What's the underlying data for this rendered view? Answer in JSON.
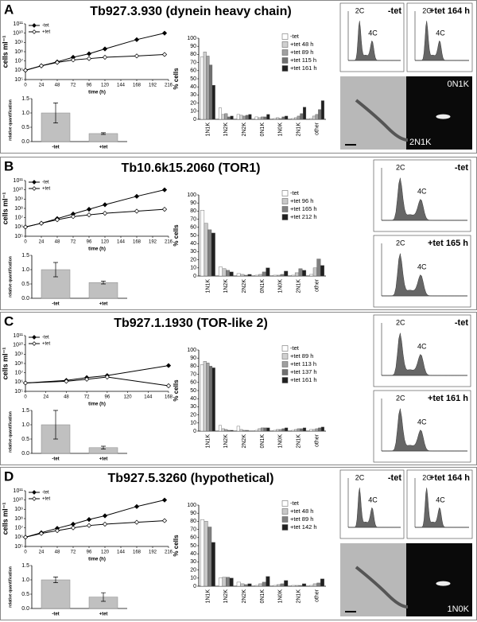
{
  "panels": [
    {
      "letter": "A",
      "title": "Tb927.3.930 (dynein heavy chain)",
      "growth": {
        "type": "line",
        "log": true,
        "xlabel": "time (h)",
        "ylabel": "cells ml⁻¹",
        "xlim": [
          0,
          216
        ],
        "xticks": [
          0,
          24,
          48,
          72,
          96,
          120,
          144,
          168,
          192,
          216
        ],
        "ylim": [
          100000.0,
          100000000000.0
        ],
        "yticks": [
          {
            "value": 100000.0,
            "label": "10⁵"
          },
          {
            "value": 1000000.0,
            "label": "10⁶"
          },
          {
            "value": 10000000.0,
            "label": "10⁷"
          },
          {
            "value": 100000000.0,
            "label": "10⁸"
          },
          {
            "value": 1000000000.0,
            "label": "10⁹"
          },
          {
            "value": 10000000000.0,
            "label": "10¹⁰"
          },
          {
            "value": 100000000000.0,
            "label": "10¹¹"
          }
        ],
        "series": [
          {
            "name": "-tet",
            "color": "#000000",
            "fill": "#000000",
            "x": [
              0,
              24,
              48,
              72,
              96,
              120,
              168,
              210
            ],
            "values": [
              1000000.0,
              3000000.0,
              8000000.0,
              25000000.0,
              60000000.0,
              200000000.0,
              2000000000.0,
              10000000000.0
            ]
          },
          {
            "name": "+tet",
            "color": "#000000",
            "fill": "#ffffff",
            "x": [
              0,
              24,
              48,
              72,
              96,
              120,
              168,
              210
            ],
            "values": [
              1000000.0,
              3000000.0,
              7000000.0,
              13000000.0,
              18000000.0,
              25000000.0,
              35000000.0,
              50000000.0
            ]
          }
        ]
      },
      "qpcr": {
        "type": "bar",
        "ylabel": "relative quantification",
        "categories": [
          "-tet",
          "+tet"
        ],
        "values": [
          1.0,
          0.28
        ],
        "errors": [
          0.35,
          0.03
        ],
        "color": "#c0c0c0",
        "ylim": [
          0,
          1.5
        ],
        "yticks": [
          {
            "value": 0,
            "label": "0.0"
          },
          {
            "value": 0.5,
            "label": "0.5"
          },
          {
            "value": 1,
            "label": "1.0"
          },
          {
            "value": 1.5,
            "label": "1.5"
          }
        ]
      },
      "distribution": {
        "type": "bar",
        "ylabel": "% cells",
        "categories": [
          "1N1K",
          "1N2K",
          "2N2K",
          "0N1K",
          "1N0K",
          "2N1K",
          "other"
        ],
        "ylim": [
          0,
          100
        ],
        "yticks": [
          0,
          10,
          20,
          30,
          40,
          50,
          60,
          70,
          80,
          90,
          100
        ],
        "series": [
          {
            "name": "-tet",
            "color": "#ffffff",
            "values": [
              77,
              14,
              6,
              3,
              1,
              1,
              1
            ]
          },
          {
            "name": "+tet 48 h",
            "color": "#d0d0d0",
            "values": [
              83,
              6,
              5,
              2,
              2,
              2,
              4
            ]
          },
          {
            "name": "+tet 89 h",
            "color": "#a0a0a0",
            "values": [
              78,
              7,
              4,
              3,
              1,
              4,
              6
            ]
          },
          {
            "name": "+tet 115 h",
            "color": "#707070",
            "values": [
              67,
              3,
              5,
              3,
              3,
              7,
              12
            ]
          },
          {
            "name": "+tet 161 h",
            "color": "#202020",
            "values": [
              42,
              4,
              6,
              6,
              4,
              15,
              23
            ]
          }
        ]
      },
      "flow": [
        {
          "label": "-tet",
          "peaks": [
            "2C",
            "4C"
          ]
        },
        {
          "label": "+tet 164 h",
          "peaks": [
            "2C",
            "4C"
          ]
        }
      ],
      "micrograph_labels": [
        "0N1K",
        "2N1K"
      ]
    },
    {
      "letter": "B",
      "title": "Tb10.6k15.2060 (TOR1)",
      "growth": {
        "type": "line",
        "log": true,
        "xlabel": "time (h)",
        "ylabel": "cells ml⁻¹",
        "xlim": [
          0,
          216
        ],
        "xticks": [
          0,
          24,
          48,
          72,
          96,
          120,
          144,
          168,
          192,
          216
        ],
        "ylim": [
          100000.0,
          100000000000.0
        ],
        "yticks": [
          {
            "value": 100000.0,
            "label": "10⁵"
          },
          {
            "value": 1000000.0,
            "label": "10⁶"
          },
          {
            "value": 10000000.0,
            "label": "10⁷"
          },
          {
            "value": 100000000.0,
            "label": "10⁸"
          },
          {
            "value": 1000000000.0,
            "label": "10⁹"
          },
          {
            "value": 10000000000.0,
            "label": "10¹⁰"
          },
          {
            "value": 100000000000.0,
            "label": "10¹¹"
          }
        ],
        "series": [
          {
            "name": "-tet",
            "color": "#000000",
            "fill": "#000000",
            "x": [
              0,
              24,
              48,
              72,
              96,
              120,
              168,
              210
            ],
            "values": [
              1000000.0,
              2500000.0,
              8000000.0,
              25000000.0,
              80000000.0,
              250000000.0,
              2000000000.0,
              10000000000.0
            ]
          },
          {
            "name": "+tet",
            "color": "#000000",
            "fill": "#ffffff",
            "x": [
              0,
              24,
              48,
              72,
              96,
              120,
              168,
              210
            ],
            "values": [
              1000000.0,
              2500000.0,
              6000000.0,
              13000000.0,
              20000000.0,
              30000000.0,
              50000000.0,
              80000000.0
            ]
          }
        ]
      },
      "qpcr": {
        "type": "bar",
        "ylabel": "relative quantification",
        "categories": [
          "-tet",
          "+tet"
        ],
        "values": [
          1.0,
          0.55
        ],
        "errors": [
          0.25,
          0.05
        ],
        "color": "#c0c0c0",
        "ylim": [
          0,
          1.5
        ],
        "yticks": [
          {
            "value": 0,
            "label": "0.0"
          },
          {
            "value": 0.5,
            "label": "0.5"
          },
          {
            "value": 1,
            "label": "1.0"
          },
          {
            "value": 1.5,
            "label": "1.5"
          }
        ]
      },
      "distribution": {
        "type": "bar",
        "ylabel": "% cells",
        "categories": [
          "1N1K",
          "1N2K",
          "2N2K",
          "0N1K",
          "1N0K",
          "2N1K",
          "other"
        ],
        "ylim": [
          0,
          100
        ],
        "yticks": [
          0,
          10,
          20,
          30,
          40,
          50,
          60,
          70,
          80,
          90,
          100
        ],
        "series": [
          {
            "name": "-tet",
            "color": "#ffffff",
            "values": [
              81,
              11,
              3,
              1,
              1,
              1,
              2
            ]
          },
          {
            "name": "+tet 96 h",
            "color": "#c8c8c8",
            "values": [
              65,
              9,
              2,
              2,
              1,
              4,
              10
            ]
          },
          {
            "name": "+tet 165 h",
            "color": "#808080",
            "values": [
              57,
              7,
              1,
              5,
              2,
              9,
              21
            ]
          },
          {
            "name": "+tet 212 h",
            "color": "#202020",
            "values": [
              53,
              5,
              2,
              10,
              6,
              7,
              13
            ]
          }
        ]
      },
      "flow": [
        {
          "label": "-tet",
          "peaks": [
            "2C",
            "4C"
          ]
        },
        {
          "label": "+tet 165 h",
          "peaks": [
            "2C",
            "4C"
          ]
        }
      ],
      "micrograph_labels": []
    },
    {
      "letter": "C",
      "title": "Tb927.1.1930 (TOR-like 2)",
      "growth": {
        "type": "line",
        "log": true,
        "xlabel": "time (h)",
        "ylabel": "cells ml⁻¹",
        "xlim": [
          0,
          168
        ],
        "xticks": [
          0,
          24,
          48,
          72,
          96,
          120,
          144,
          168
        ],
        "ylim": [
          100000.0,
          100000000000.0
        ],
        "yticks": [
          {
            "value": 100000.0,
            "label": "10⁵"
          },
          {
            "value": 1000000.0,
            "label": "10⁶"
          },
          {
            "value": 10000000.0,
            "label": "10⁷"
          },
          {
            "value": 100000000.0,
            "label": "10⁸"
          },
          {
            "value": 1000000000.0,
            "label": "10⁹"
          },
          {
            "value": 10000000000.0,
            "label": "10¹⁰"
          },
          {
            "value": 100000000000.0,
            "label": "10¹¹"
          }
        ],
        "series": [
          {
            "name": "-tet",
            "color": "#000000",
            "fill": "#000000",
            "x": [
              0,
              48,
              72,
              96,
              168
            ],
            "values": [
              800000.0,
              1500000.0,
              3000000.0,
              5000000.0,
              60000000.0
            ]
          },
          {
            "name": "+tet",
            "color": "#000000",
            "fill": "#ffffff",
            "x": [
              0,
              48,
              72,
              96,
              168
            ],
            "values": [
              800000.0,
              1200000.0,
              2000000.0,
              3500000.0,
              400000.0
            ]
          }
        ]
      },
      "qpcr": {
        "type": "bar",
        "ylabel": "relative quantification",
        "categories": [
          "-tet",
          "+tet"
        ],
        "values": [
          1.0,
          0.2
        ],
        "errors": [
          0.5,
          0.05
        ],
        "color": "#c0c0c0",
        "ylim": [
          0,
          1.5
        ],
        "yticks": [
          {
            "value": 0,
            "label": "0.0"
          },
          {
            "value": 0.5,
            "label": "0.5"
          },
          {
            "value": 1,
            "label": "1.0"
          },
          {
            "value": 1.5,
            "label": "1.5"
          }
        ]
      },
      "distribution": {
        "type": "bar",
        "ylabel": "% cells",
        "categories": [
          "1N1K",
          "1N2K",
          "2N2K",
          "0N1K",
          "1N0K",
          "2N1K",
          "other"
        ],
        "ylim": [
          0,
          100
        ],
        "yticks": [
          0,
          10,
          20,
          30,
          40,
          50,
          60,
          70,
          80,
          90,
          100
        ],
        "series": [
          {
            "name": "-tet",
            "color": "#ffffff",
            "values": [
              82,
              7,
              6,
              1,
              1,
              1,
              2
            ]
          },
          {
            "name": "+tet 89 h",
            "color": "#d0d0d0",
            "values": [
              86,
              3,
              2,
              3,
              2,
              2,
              2
            ]
          },
          {
            "name": "+tet 113 h",
            "color": "#a0a0a0",
            "values": [
              84,
              2,
              1,
              4,
              2,
              3,
              3
            ]
          },
          {
            "name": "+tet 137 h",
            "color": "#707070",
            "values": [
              80,
              1,
              1,
              4,
              3,
              3,
              4
            ]
          },
          {
            "name": "+tet 161 h",
            "color": "#202020",
            "values": [
              78,
              1,
              0,
              4,
              4,
              4,
              5
            ]
          }
        ]
      },
      "flow": [
        {
          "label": "-tet",
          "peaks": [
            "2C",
            "4C"
          ]
        },
        {
          "label": "+tet 161 h",
          "peaks": [
            "2C",
            "4C"
          ]
        }
      ],
      "micrograph_labels": []
    },
    {
      "letter": "D",
      "title": "Tb927.5.3260 (hypothetical)",
      "growth": {
        "type": "line",
        "log": true,
        "xlabel": "time (h)",
        "ylabel": "cells ml⁻¹",
        "xlim": [
          0,
          216
        ],
        "xticks": [
          0,
          24,
          48,
          72,
          96,
          120,
          144,
          168,
          192,
          216
        ],
        "ylim": [
          100000.0,
          100000000000.0
        ],
        "yticks": [
          {
            "value": 100000.0,
            "label": "10⁵"
          },
          {
            "value": 1000000.0,
            "label": "10⁶"
          },
          {
            "value": 10000000.0,
            "label": "10⁷"
          },
          {
            "value": 100000000.0,
            "label": "10⁸"
          },
          {
            "value": 1000000000.0,
            "label": "10⁹"
          },
          {
            "value": 10000000000.0,
            "label": "10¹⁰"
          },
          {
            "value": 100000000000.0,
            "label": "10¹¹"
          }
        ],
        "series": [
          {
            "name": "-tet",
            "color": "#000000",
            "fill": "#000000",
            "x": [
              0,
              24,
              48,
              72,
              96,
              120,
              168,
              210
            ],
            "values": [
              1000000.0,
              3000000.0,
              9000000.0,
              25000000.0,
              80000000.0,
              200000000.0,
              2000000000.0,
              10000000000.0
            ]
          },
          {
            "name": "+tet",
            "color": "#000000",
            "fill": "#ffffff",
            "x": [
              0,
              24,
              48,
              72,
              96,
              120,
              168,
              210
            ],
            "values": [
              1000000.0,
              2500000.0,
              5000000.0,
              10000000.0,
              18000000.0,
              25000000.0,
              40000000.0,
              60000000.0
            ]
          }
        ]
      },
      "qpcr": {
        "type": "bar",
        "ylabel": "relative quantification",
        "categories": [
          "-tet",
          "+tet"
        ],
        "values": [
          1.0,
          0.4
        ],
        "errors": [
          0.1,
          0.15
        ],
        "color": "#c0c0c0",
        "ylim": [
          0,
          1.5
        ],
        "yticks": [
          {
            "value": 0,
            "label": "0.0"
          },
          {
            "value": 0.5,
            "label": "0.5"
          },
          {
            "value": 1,
            "label": "1.0"
          },
          {
            "value": 1.5,
            "label": "1.5"
          }
        ]
      },
      "distribution": {
        "type": "bar",
        "ylabel": "% cells",
        "categories": [
          "1N1K",
          "1N2K",
          "2N2K",
          "0N1K",
          "1N0K",
          "2N1K",
          "other"
        ],
        "ylim": [
          0,
          100
        ],
        "yticks": [
          0,
          10,
          20,
          30,
          40,
          50,
          60,
          70,
          80,
          90,
          100
        ],
        "series": [
          {
            "name": "-tet",
            "color": "#ffffff",
            "values": [
              82,
              10,
              5,
              1,
              1,
              1,
              1
            ]
          },
          {
            "name": "+tet 48 h",
            "color": "#c8c8c8",
            "values": [
              80,
              11,
              3,
              3,
              2,
              1,
              3
            ]
          },
          {
            "name": "+tet 89 h",
            "color": "#808080",
            "values": [
              73,
              11,
              2,
              5,
              3,
              1,
              4
            ]
          },
          {
            "name": "+tet 142 h",
            "color": "#202020",
            "values": [
              54,
              10,
              3,
              12,
              7,
              3,
              9
            ]
          }
        ]
      },
      "flow": [
        {
          "label": "-tet",
          "peaks": [
            "2C",
            "4C"
          ]
        },
        {
          "label": "+tet 164 h",
          "peaks": [
            "2C",
            "4C"
          ]
        }
      ],
      "micrograph_labels": [
        "1N0K"
      ]
    }
  ]
}
